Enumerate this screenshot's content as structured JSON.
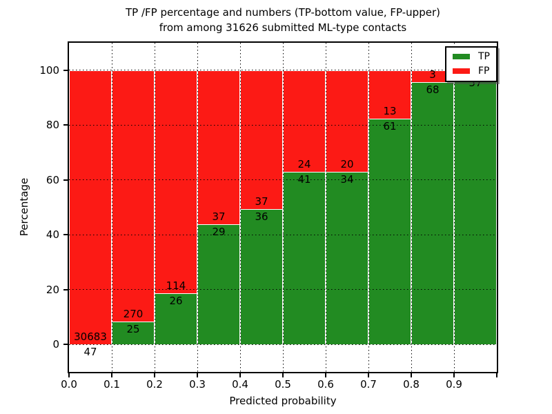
{
  "chart_data": {
    "type": "bar",
    "stacked": true,
    "percent_normalized": true,
    "title_line1": "TP /FP percentage and numbers (TP-bottom value, FP-upper)",
    "title_line2": "from among 31626 submitted ML-type contacts",
    "total_submitted": 31626,
    "xlabel": "Predicted probability",
    "ylabel": "Percentage",
    "xlim": [
      0.0,
      1.0
    ],
    "ylim": [
      -10,
      110
    ],
    "x_tick_labels": [
      "0.0",
      "0.1",
      "0.2",
      "0.3",
      "0.4",
      "0.5",
      "0.6",
      "0.7",
      "0.8",
      "0.9"
    ],
    "y_tick_values": [
      0,
      20,
      40,
      60,
      80,
      100
    ],
    "grid_style": "dotted",
    "colors": {
      "tp_green": "#228b22",
      "fp_red": "#fc1a15",
      "bar_edge": "#ffffff"
    },
    "legend": {
      "position": "upper-right",
      "entries": [
        {
          "label": "TP",
          "color": "#228b22"
        },
        {
          "label": "FP",
          "color": "#fc1a15"
        }
      ]
    },
    "bins": [
      {
        "range_start": 0.0,
        "range_end": 0.1,
        "tp_count": 47,
        "fp_count": 30683,
        "tp_pct": 0.15,
        "tp_label": "47",
        "fp_label": "30683"
      },
      {
        "range_start": 0.1,
        "range_end": 0.2,
        "tp_count": 25,
        "fp_count": 270,
        "tp_pct": 8.47,
        "tp_label": "25",
        "fp_label": "270"
      },
      {
        "range_start": 0.2,
        "range_end": 0.3,
        "tp_count": 26,
        "fp_count": 114,
        "tp_pct": 18.57,
        "tp_label": "26",
        "fp_label": "114"
      },
      {
        "range_start": 0.3,
        "range_end": 0.4,
        "tp_count": 29,
        "fp_count": 37,
        "tp_pct": 43.94,
        "tp_label": "29",
        "fp_label": "37"
      },
      {
        "range_start": 0.4,
        "range_end": 0.5,
        "tp_count": 36,
        "fp_count": 37,
        "tp_pct": 49.32,
        "tp_label": "36",
        "fp_label": "37"
      },
      {
        "range_start": 0.5,
        "range_end": 0.6,
        "tp_count": 41,
        "fp_count": 24,
        "tp_pct": 63.08,
        "tp_label": "41",
        "fp_label": "24"
      },
      {
        "range_start": 0.6,
        "range_end": 0.7,
        "tp_count": 34,
        "fp_count": 20,
        "tp_pct": 62.96,
        "tp_label": "34",
        "fp_label": "20"
      },
      {
        "range_start": 0.7,
        "range_end": 0.8,
        "tp_count": 61,
        "fp_count": 13,
        "tp_pct": 82.43,
        "tp_label": "61",
        "fp_label": "13"
      },
      {
        "range_start": 0.8,
        "range_end": 0.9,
        "tp_count": 68,
        "fp_count": 3,
        "tp_pct": 95.77,
        "tp_label": "68",
        "fp_label": "3"
      },
      {
        "range_start": 0.9,
        "range_end": 1.0,
        "tp_count": 57,
        "fp_count": 1,
        "tp_pct": 98.28,
        "tp_label": "57",
        "fp_label": "",
        "fp_label_hidden_by_legend": true
      }
    ]
  }
}
